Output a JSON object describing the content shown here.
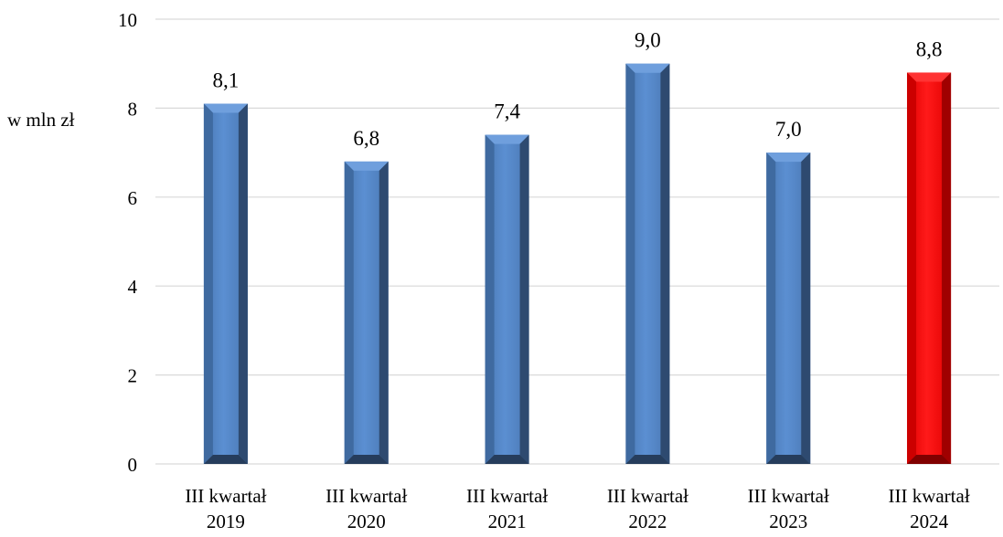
{
  "chart_data": {
    "type": "bar",
    "title": "",
    "xlabel": "",
    "ylabel": "w mln zł",
    "ylim": [
      0,
      10
    ],
    "yticks": [
      0,
      2,
      4,
      6,
      8,
      10
    ],
    "grid": true,
    "legend": "none",
    "categories": [
      [
        "III kwartał",
        "2019"
      ],
      [
        "III kwartał",
        "2020"
      ],
      [
        "III kwartał",
        "2021"
      ],
      [
        "III kwartał",
        "2022"
      ],
      [
        "III kwartał",
        "2023"
      ],
      [
        "III kwartał",
        "2024"
      ]
    ],
    "values": [
      8.1,
      6.8,
      7.4,
      9.0,
      7.0,
      8.8
    ],
    "data_labels": [
      "8,1",
      "6,8",
      "7,4",
      "9,0",
      "7,0",
      "8,8"
    ],
    "colors": {
      "default_bar": "#4F81BD",
      "highlight_bar": "#FF0000",
      "gridline": "#D9D9D9"
    },
    "highlight_index": 5
  }
}
